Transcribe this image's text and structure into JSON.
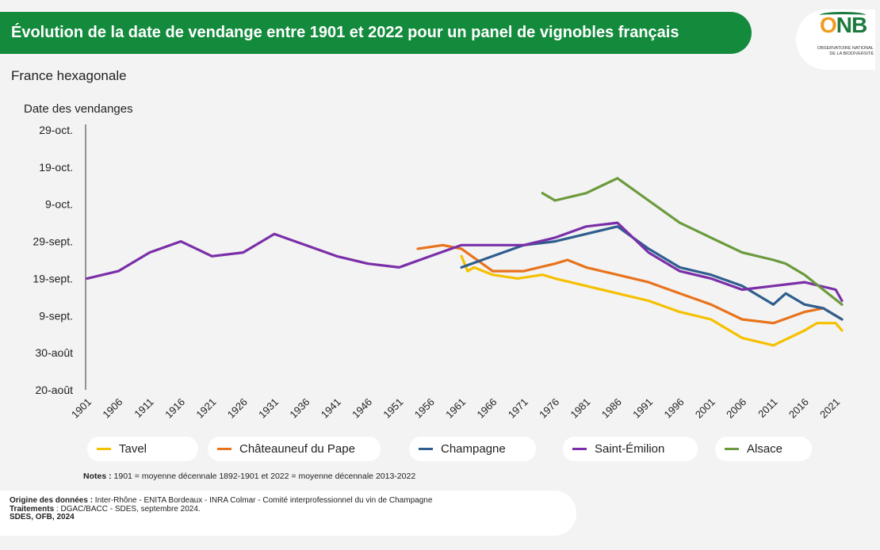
{
  "header": {
    "title": "Évolution de la date de vendange entre 1901 et 2022 pour un panel de vignobles français",
    "subtitle": "France hexagonale"
  },
  "logo": {
    "mark_o": "O",
    "mark_nb": "NB",
    "sub1": "OBSERVATOIRE NATIONAL",
    "sub2": "DE LA BIODIVERSITÉ"
  },
  "footer": {
    "notes_label": "Notes :",
    "notes_text": " 1901 = moyenne décennale 1892-1901 et 2022 = moyenne décennale 2013-2022",
    "source_label": "Origine des données :",
    "source_text": " Inter-Rhône - ENITA Bordeaux - INRA Colmar - Comité interprofessionnel du vin de Champagne",
    "processing_label": "Traitements",
    "processing_text": " : DGAC/BACC - SDES, septembre 2024.",
    "credit": "SDES, OFB, 2024"
  },
  "chart_data": {
    "type": "line",
    "ylabel": "Date des vendanges",
    "y_ticks": [
      "20-août",
      "30-août",
      "9-sept.",
      "19-sept.",
      "29-sept.",
      "9-oct.",
      "19-oct.",
      "29-oct."
    ],
    "ylim": [
      "2000-08-20",
      "2000-10-29"
    ],
    "x_ticks": [
      1901,
      1906,
      1911,
      1916,
      1921,
      1926,
      1931,
      1936,
      1941,
      1946,
      1951,
      1956,
      1961,
      1966,
      1971,
      1976,
      1981,
      1986,
      1991,
      1996,
      2001,
      2006,
      2011,
      2016,
      2021
    ],
    "xlim": [
      1901,
      2022
    ],
    "legend_position": "bottom",
    "series": [
      {
        "name": "Tavel",
        "color": "#f5c000",
        "points": [
          [
            1961,
            "2000-09-25"
          ],
          [
            1962,
            "2000-09-21"
          ],
          [
            1963,
            "2000-09-22"
          ],
          [
            1966,
            "2000-09-20"
          ],
          [
            1970,
            "2000-09-19"
          ],
          [
            1974,
            "2000-09-20"
          ],
          [
            1976,
            "2000-09-19"
          ],
          [
            1981,
            "2000-09-17"
          ],
          [
            1986,
            "2000-09-15"
          ],
          [
            1991,
            "2000-09-13"
          ],
          [
            1996,
            "2000-09-10"
          ],
          [
            2001,
            "2000-09-08"
          ],
          [
            2006,
            "2000-09-03"
          ],
          [
            2011,
            "2000-09-01"
          ],
          [
            2016,
            "2000-09-05"
          ],
          [
            2018,
            "2000-09-07"
          ],
          [
            2021,
            "2000-09-07"
          ],
          [
            2022,
            "2000-09-05"
          ]
        ]
      },
      {
        "name": "Châteauneuf du Pape",
        "color": "#e8731c",
        "points": [
          [
            1954,
            "2000-09-27"
          ],
          [
            1958,
            "2000-09-28"
          ],
          [
            1961,
            "2000-09-27"
          ],
          [
            1966,
            "2000-09-21"
          ],
          [
            1971,
            "2000-09-21"
          ],
          [
            1976,
            "2000-09-23"
          ],
          [
            1978,
            "2000-09-24"
          ],
          [
            1981,
            "2000-09-22"
          ],
          [
            1986,
            "2000-09-20"
          ],
          [
            1991,
            "2000-09-18"
          ],
          [
            1996,
            "2000-09-15"
          ],
          [
            2001,
            "2000-09-12"
          ],
          [
            2006,
            "2000-09-08"
          ],
          [
            2011,
            "2000-09-07"
          ],
          [
            2016,
            "2000-09-10"
          ],
          [
            2019,
            "2000-09-11"
          ],
          [
            2022,
            "2000-09-08"
          ]
        ]
      },
      {
        "name": "Champagne",
        "color": "#2e5e8e",
        "points": [
          [
            1961,
            "2000-09-22"
          ],
          [
            1966,
            "2000-09-25"
          ],
          [
            1971,
            "2000-09-28"
          ],
          [
            1976,
            "2000-09-29"
          ],
          [
            1981,
            "2000-10-01"
          ],
          [
            1986,
            "2000-10-03"
          ],
          [
            1991,
            "2000-09-27"
          ],
          [
            1996,
            "2000-09-22"
          ],
          [
            2001,
            "2000-09-20"
          ],
          [
            2006,
            "2000-09-17"
          ],
          [
            2011,
            "2000-09-12"
          ],
          [
            2013,
            "2000-09-15"
          ],
          [
            2016,
            "2000-09-12"
          ],
          [
            2019,
            "2000-09-11"
          ],
          [
            2022,
            "2000-09-08"
          ]
        ]
      },
      {
        "name": "Saint-Émilion",
        "color": "#7a2fa8",
        "points": [
          [
            1901,
            "2000-09-19"
          ],
          [
            1906,
            "2000-09-21"
          ],
          [
            1911,
            "2000-09-26"
          ],
          [
            1916,
            "2000-09-29"
          ],
          [
            1921,
            "2000-09-25"
          ],
          [
            1926,
            "2000-09-26"
          ],
          [
            1931,
            "2000-10-01"
          ],
          [
            1936,
            "2000-09-28"
          ],
          [
            1941,
            "2000-09-25"
          ],
          [
            1946,
            "2000-09-23"
          ],
          [
            1951,
            "2000-09-22"
          ],
          [
            1956,
            "2000-09-25"
          ],
          [
            1961,
            "2000-09-28"
          ],
          [
            1966,
            "2000-09-28"
          ],
          [
            1971,
            "2000-09-28"
          ],
          [
            1976,
            "2000-09-30"
          ],
          [
            1981,
            "2000-10-03"
          ],
          [
            1986,
            "2000-10-04"
          ],
          [
            1991,
            "2000-09-26"
          ],
          [
            1996,
            "2000-09-21"
          ],
          [
            2001,
            "2000-09-19"
          ],
          [
            2006,
            "2000-09-16"
          ],
          [
            2011,
            "2000-09-17"
          ],
          [
            2016,
            "2000-09-18"
          ],
          [
            2021,
            "2000-09-16"
          ],
          [
            2022,
            "2000-09-13"
          ]
        ]
      },
      {
        "name": "Alsace",
        "color": "#6b9a3c",
        "points": [
          [
            1974,
            "2000-10-12"
          ],
          [
            1976,
            "2000-10-10"
          ],
          [
            1981,
            "2000-10-12"
          ],
          [
            1986,
            "2000-10-16"
          ],
          [
            1991,
            "2000-10-10"
          ],
          [
            1996,
            "2000-10-04"
          ],
          [
            2001,
            "2000-09-30"
          ],
          [
            2006,
            "2000-09-26"
          ],
          [
            2011,
            "2000-09-24"
          ],
          [
            2013,
            "2000-09-23"
          ],
          [
            2016,
            "2000-09-20"
          ],
          [
            2019,
            "2000-09-16"
          ],
          [
            2022,
            "2000-09-12"
          ]
        ]
      }
    ]
  }
}
